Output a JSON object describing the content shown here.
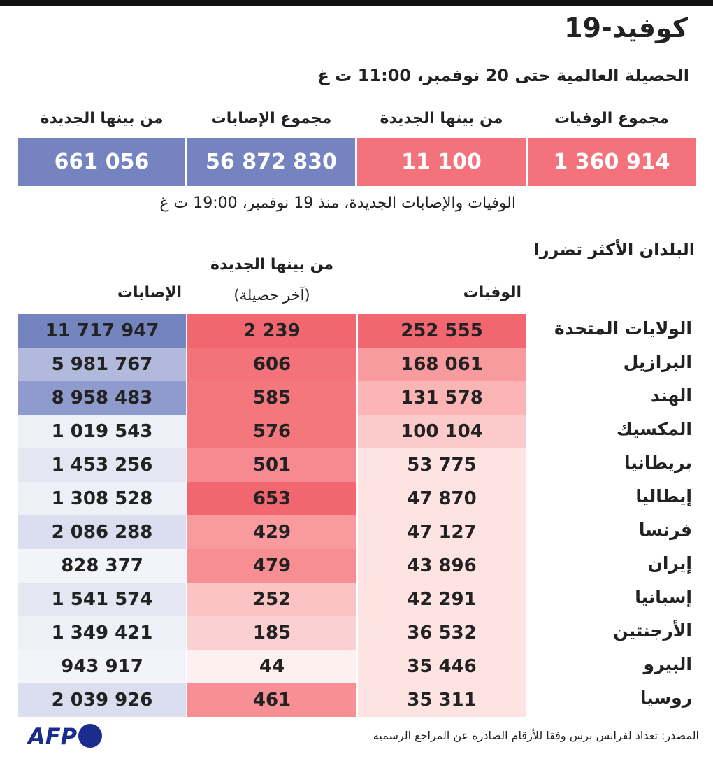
{
  "header": {
    "title": "كوفيد-19",
    "subtitle": "الحصيلة العالمية حتى 20 نوفمبر، 11:00 ت غ"
  },
  "summary": {
    "columns": [
      "مجموع الوفيات",
      "من بينها الجديدة",
      "مجموع الإصابات",
      "من بينها الجديدة"
    ],
    "values": [
      "1 360 914",
      "11 100",
      "56 872 830",
      "661 056"
    ],
    "note": "الوفيات والإصابات الجديدة، منذ 19 نوفمبر، 19:00 ت غ"
  },
  "table": {
    "title": "البلدان الأكثر تضررا",
    "headers": {
      "deaths": "الوفيات",
      "new": "من بينها الجديدة",
      "new_note": "(آخر حصيلة)",
      "cases": "الإصابات"
    },
    "rows": [
      [
        "الولايات المتحدة",
        "252 555",
        "2 239",
        "11 717 947"
      ],
      [
        "البرازيل",
        "168 061",
        "606",
        "5 981 767"
      ],
      [
        "الهند",
        "131 578",
        "585",
        "8 958 483"
      ],
      [
        "المكسيك",
        "100 104",
        "576",
        "1 019 543"
      ],
      [
        "بريطانيا",
        "53 775",
        "501",
        "1 453 256"
      ],
      [
        "إيطاليا",
        "47 870",
        "653",
        "1 308 528"
      ],
      [
        "فرنسا",
        "47 127",
        "429",
        "2 086 288"
      ],
      [
        "إيران",
        "43 896",
        "479",
        "828 377"
      ],
      [
        "إسبانيا",
        "42 291",
        "252",
        "1 541 574"
      ],
      [
        "الأرجنتين",
        "36 532",
        "185",
        "1 349 421"
      ],
      [
        "البيرو",
        "35 446",
        "44",
        "943 917"
      ],
      [
        "روسيا",
        "35 311",
        "461",
        "2 039 926"
      ]
    ]
  },
  "footer": {
    "source": "المصدر: تعداد لفرانس برس وفقا للأرقام الصادرة عن المراجع الرسمية",
    "logo": "AFP"
  }
}
